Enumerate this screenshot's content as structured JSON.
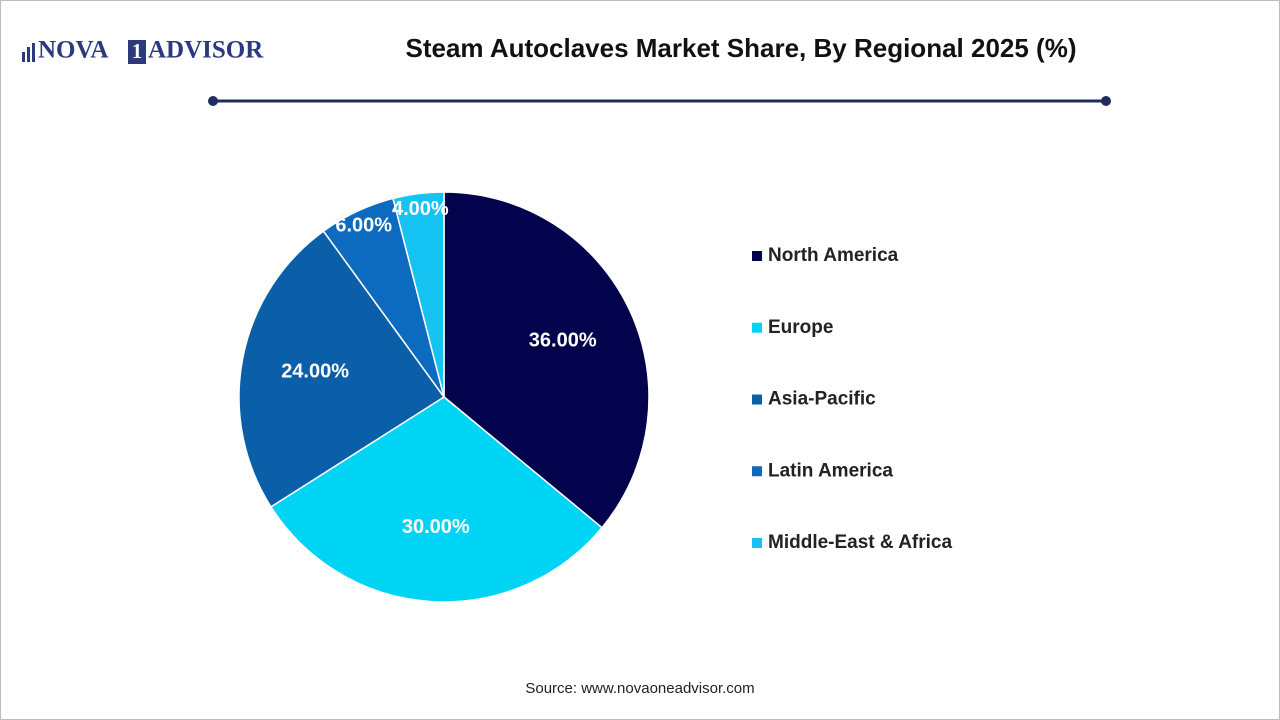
{
  "logo": {
    "parts": [
      "NOVA",
      "1",
      "ADVISOR"
    ]
  },
  "chart_data": {
    "type": "pie",
    "title": "Steam Autoclaves Market Share, By Regional 2025 (%)",
    "categories": [
      "North America",
      "Europe",
      "Asia-Pacific",
      "Latin America",
      "Middle-East & Africa"
    ],
    "values": [
      36,
      30,
      24,
      6,
      4
    ],
    "value_labels": [
      "36.00%",
      "30.00%",
      "24.00%",
      "6.00%",
      "4.00%"
    ],
    "colors": [
      "#03034d",
      "#00d4f5",
      "#0b5ea8",
      "#0c6bbf",
      "#15c3f2"
    ],
    "legend": "right"
  },
  "source": "Source: www.novaoneadvisor.com"
}
